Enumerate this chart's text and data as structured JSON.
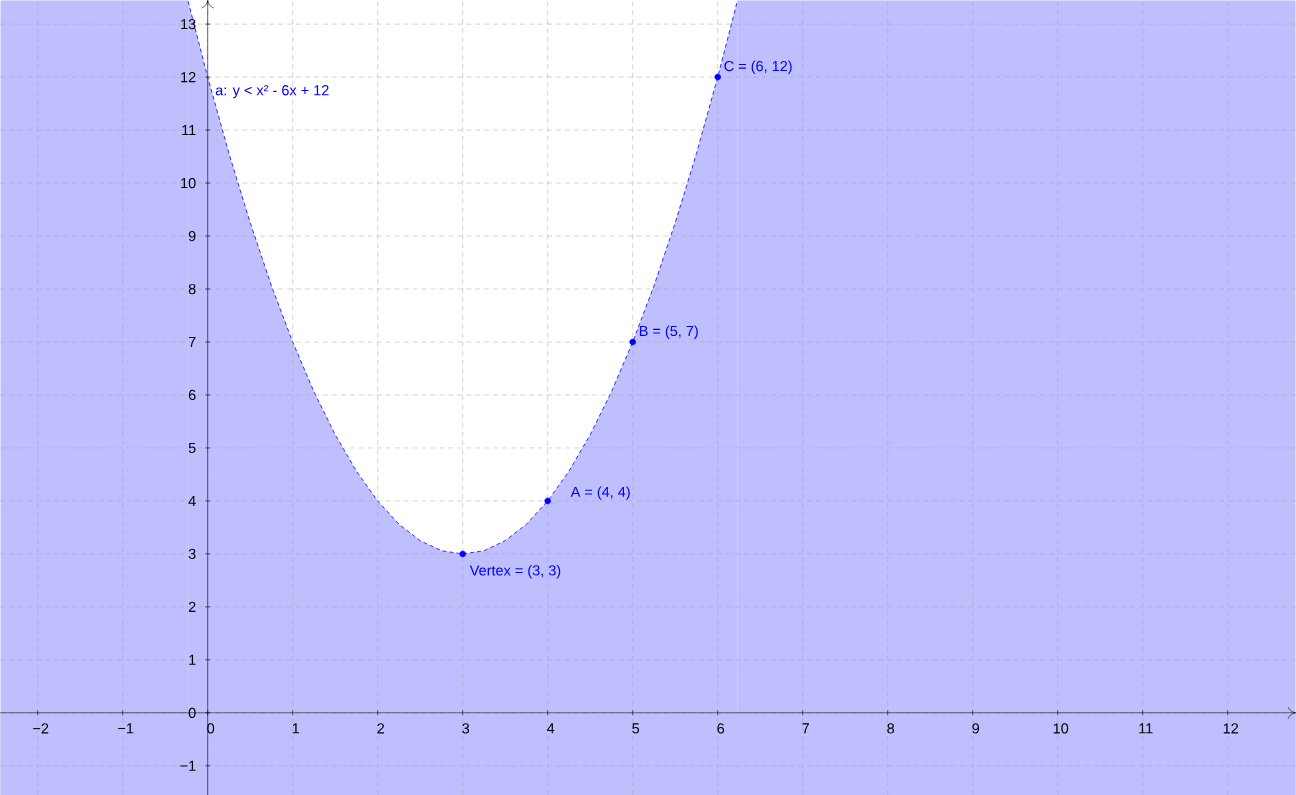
{
  "chart_data": {
    "type": "area",
    "xlim": [
      -2.44,
      12.8
    ],
    "ylim": [
      -1.55,
      13.45
    ],
    "xticks": [
      {
        "value": -2,
        "label": "−2"
      },
      {
        "value": -1,
        "label": "−1"
      },
      0,
      1,
      2,
      3,
      4,
      5,
      6,
      7,
      8,
      9,
      10,
      11,
      12
    ],
    "yticks": [
      {
        "value": -1,
        "label": "−1"
      },
      0,
      1,
      2,
      3,
      4,
      5,
      6,
      7,
      8,
      9,
      10,
      11,
      12,
      13
    ],
    "grid": true,
    "series": [
      {
        "type": "area",
        "color": "#0000ff",
        "line_style": "dashed",
        "x": [
          -0.23,
          0,
          0.25,
          0.5,
          0.75,
          1,
          1.25,
          1.5,
          1.75,
          2,
          2.25,
          2.5,
          2.75,
          3,
          3.25,
          3.5,
          3.75,
          4,
          4.25,
          4.5,
          4.75,
          5,
          5.25,
          5.5,
          5.75,
          6,
          6.23
        ],
        "values": [
          13.43,
          12,
          10.56,
          9.25,
          8.06,
          7,
          6.06,
          5.25,
          4.56,
          4,
          3.56,
          3.25,
          3.06,
          3,
          3.06,
          3.25,
          3.56,
          4,
          4.56,
          5.25,
          6.06,
          7,
          8.06,
          9.25,
          10.56,
          12,
          13.43
        ]
      },
      {
        "type": "scatter",
        "color": "#0000ff",
        "marker": "circle",
        "x": [
          3,
          4,
          5,
          6
        ],
        "values": [
          3,
          4,
          7,
          12
        ]
      }
    ],
    "bands": [
      {
        "axis": "y",
        "from": -1.55,
        "to": 0,
        "color": "#bfbfff"
      },
      {
        "axis": "x",
        "from": -2.44,
        "to": -0.23,
        "color": "#bfbfff"
      },
      {
        "axis": "x",
        "from": 6.23,
        "to": 12.8,
        "color": "#bfbfff"
      }
    ],
    "annotations": [
      "a: y < x² - 6x + 12",
      {
        "text": "Vertex = (3, 3)",
        "x": 3,
        "y": 3
      },
      {
        "text": "A = (4, 4)",
        "x": 4,
        "y": 4
      },
      {
        "text": "B = (5, 7)",
        "x": 5,
        "y": 7
      },
      {
        "text": "C = (6, 12)",
        "x": 6,
        "y": 12
      }
    ]
  }
}
